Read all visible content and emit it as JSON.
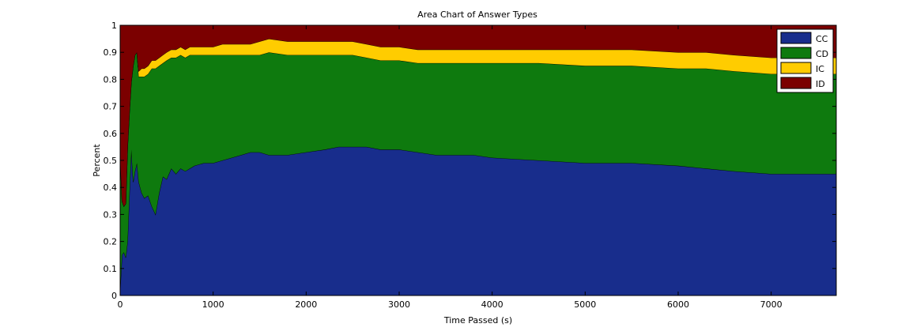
{
  "chart_data": {
    "type": "area",
    "stacked": true,
    "title": "Area Chart of Answer Types",
    "xlabel": "Time Passed (s)",
    "ylabel": "Percent",
    "xlim": [
      0,
      7700
    ],
    "ylim": [
      0,
      1
    ],
    "xticks": [
      0,
      1000,
      2000,
      3000,
      4000,
      5000,
      6000,
      7000
    ],
    "yticks": [
      0,
      0.1,
      0.2,
      0.3,
      0.4,
      0.5,
      0.6,
      0.7,
      0.8,
      0.9,
      1
    ],
    "grid": false,
    "legend_position": "top-right",
    "x": [
      0,
      20,
      40,
      60,
      80,
      100,
      120,
      140,
      160,
      180,
      200,
      230,
      260,
      300,
      340,
      380,
      420,
      460,
      500,
      550,
      600,
      650,
      700,
      750,
      800,
      900,
      1000,
      1100,
      1200,
      1300,
      1400,
      1500,
      1600,
      1800,
      2000,
      2200,
      2350,
      2500,
      2650,
      2800,
      3000,
      3200,
      3400,
      3600,
      3800,
      4000,
      4500,
      5000,
      5500,
      6000,
      6300,
      6600,
      7000,
      7400,
      7700
    ],
    "series": [
      {
        "name": "CC",
        "color": "#182d8c",
        "values": [
          0.02,
          0.15,
          0.16,
          0.14,
          0.2,
          0.38,
          0.54,
          0.42,
          0.46,
          0.49,
          0.42,
          0.38,
          0.36,
          0.37,
          0.33,
          0.3,
          0.38,
          0.44,
          0.43,
          0.47,
          0.45,
          0.47,
          0.46,
          0.47,
          0.48,
          0.49,
          0.49,
          0.5,
          0.51,
          0.52,
          0.53,
          0.53,
          0.52,
          0.52,
          0.53,
          0.54,
          0.55,
          0.55,
          0.55,
          0.54,
          0.54,
          0.53,
          0.52,
          0.52,
          0.52,
          0.51,
          0.5,
          0.49,
          0.49,
          0.48,
          0.47,
          0.46,
          0.45,
          0.45,
          0.45
        ]
      },
      {
        "name": "CD",
        "color": "#0e7a0e",
        "values": [
          0.5,
          0.2,
          0.17,
          0.2,
          0.35,
          0.3,
          0.25,
          0.43,
          0.43,
          0.41,
          0.39,
          0.43,
          0.45,
          0.45,
          0.51,
          0.54,
          0.47,
          0.42,
          0.44,
          0.41,
          0.43,
          0.42,
          0.42,
          0.42,
          0.41,
          0.4,
          0.4,
          0.39,
          0.38,
          0.37,
          0.36,
          0.36,
          0.38,
          0.37,
          0.36,
          0.35,
          0.34,
          0.34,
          0.33,
          0.33,
          0.33,
          0.33,
          0.34,
          0.34,
          0.34,
          0.35,
          0.36,
          0.36,
          0.36,
          0.36,
          0.37,
          0.37,
          0.37,
          0.37,
          0.37
        ]
      },
      {
        "name": "IC",
        "color": "#ffcc00",
        "values": [
          0.0,
          0.0,
          0.0,
          0.0,
          0.0,
          0.0,
          0.0,
          0.0,
          0.0,
          0.0,
          0.02,
          0.03,
          0.03,
          0.03,
          0.03,
          0.03,
          0.03,
          0.03,
          0.03,
          0.03,
          0.03,
          0.03,
          0.03,
          0.03,
          0.03,
          0.03,
          0.03,
          0.04,
          0.04,
          0.04,
          0.04,
          0.05,
          0.05,
          0.05,
          0.05,
          0.05,
          0.05,
          0.05,
          0.05,
          0.05,
          0.05,
          0.05,
          0.05,
          0.05,
          0.05,
          0.05,
          0.05,
          0.06,
          0.06,
          0.06,
          0.06,
          0.06,
          0.06,
          0.06,
          0.06
        ]
      },
      {
        "name": "ID",
        "color": "#7b0000",
        "values": [
          0.48,
          0.65,
          0.67,
          0.66,
          0.45,
          0.32,
          0.21,
          0.15,
          0.11,
          0.1,
          0.17,
          0.16,
          0.16,
          0.15,
          0.13,
          0.13,
          0.12,
          0.11,
          0.1,
          0.09,
          0.09,
          0.08,
          0.09,
          0.08,
          0.08,
          0.08,
          0.08,
          0.07,
          0.07,
          0.07,
          0.07,
          0.06,
          0.05,
          0.06,
          0.06,
          0.06,
          0.06,
          0.06,
          0.07,
          0.08,
          0.08,
          0.09,
          0.09,
          0.09,
          0.09,
          0.09,
          0.09,
          0.09,
          0.09,
          0.1,
          0.1,
          0.11,
          0.12,
          0.12,
          0.12
        ]
      }
    ]
  }
}
